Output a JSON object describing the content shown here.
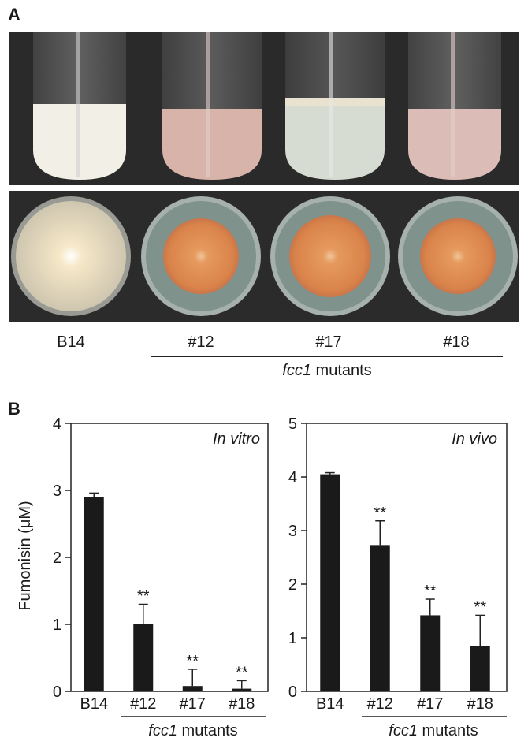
{
  "panel_a": {
    "letter": "A",
    "strains": [
      "B14",
      "#12",
      "#17",
      "#18"
    ],
    "group_italic": "fcc1",
    "group_rest": " mutants",
    "colors": {
      "tube_background": "#2a2a2a",
      "b14_culture": "#f2efe6",
      "mutant_culture_pink": "#d8b3a9",
      "mutant_culture_clear": "#d6dcd2",
      "plate_agar": "#7f928c",
      "colony_orange": "#d9834a",
      "b14_mycelium": "#e4dcc9"
    }
  },
  "panel_b": {
    "letter": "B"
  },
  "chart_data": [
    {
      "type": "bar",
      "annotation": "In vitro",
      "ylabel": "Fumonisin (μM)",
      "ylim": [
        0,
        4
      ],
      "yticks": [
        "0",
        "1",
        "2",
        "3",
        "4"
      ],
      "categories": [
        "B14",
        "#12",
        "#17",
        "#18"
      ],
      "values": [
        2.9,
        1.0,
        0.08,
        0.04
      ],
      "errors": [
        0.06,
        0.3,
        0.25,
        0.12
      ],
      "significance": [
        "",
        "**",
        "**",
        "**"
      ],
      "group_italic": "fcc1",
      "group_rest": " mutants",
      "bar_color": "#1a1a1a"
    },
    {
      "type": "bar",
      "annotation": "In vivo",
      "ylabel": "",
      "ylim": [
        0,
        5
      ],
      "yticks": [
        "0",
        "1",
        "2",
        "3",
        "4",
        "5"
      ],
      "categories": [
        "B14",
        "#12",
        "#17",
        "#18"
      ],
      "values": [
        4.05,
        2.73,
        1.42,
        0.84
      ],
      "errors": [
        0.03,
        0.45,
        0.3,
        0.58
      ],
      "significance": [
        "",
        "**",
        "**",
        "**"
      ],
      "group_italic": "fcc1",
      "group_rest": " mutants",
      "bar_color": "#1a1a1a"
    }
  ]
}
